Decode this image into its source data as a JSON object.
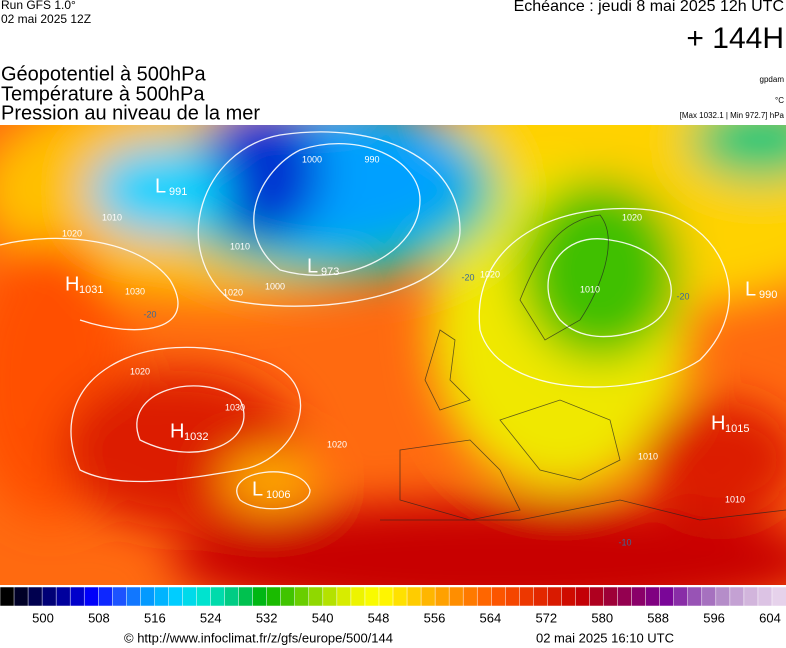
{
  "header": {
    "run": "Run GFS 1.0°",
    "run_date": "02 mai 2025 12Z",
    "valid": "Echéance : jeudi 8 mai 2025 12h UTC",
    "lead": "+ 144H",
    "titles": [
      "Géopotentiel à 500hPa",
      "Température à 500hPa",
      "Pression au niveau de la mer"
    ],
    "units": [
      "gpdam",
      "°C",
      "[Max 1032.1 | Min 972.7] hPa"
    ]
  },
  "map": {
    "centers": [
      {
        "letter": "H",
        "value": "1031"
      },
      {
        "letter": "L",
        "value": "973"
      },
      {
        "letter": "L",
        "value": "991"
      },
      {
        "letter": "L",
        "value": "990"
      },
      {
        "letter": "H",
        "value": "1032"
      },
      {
        "letter": "L",
        "value": "1006"
      },
      {
        "letter": "H",
        "value": "1015"
      }
    ],
    "isobar_labels": [
      "1000",
      "990",
      "1010",
      "1020",
      "1010",
      "1020",
      "1030",
      "1000",
      "1020",
      "1010",
      "1020",
      "1030",
      "1020",
      "1010",
      "1010",
      "1020"
    ],
    "temperature_labels": [
      "-20",
      "-20",
      "-20",
      "-10"
    ]
  },
  "colorbar": {
    "ticks": [
      500,
      508,
      516,
      524,
      532,
      540,
      548,
      556,
      564,
      572,
      580,
      588,
      596,
      604
    ],
    "colors": [
      "#000000",
      "#000050",
      "#0000a0",
      "#0000ff",
      "#1e5aff",
      "#00a0ff",
      "#00d2ff",
      "#00e6c8",
      "#00c878",
      "#00b400",
      "#50c800",
      "#a0dc00",
      "#e6f000",
      "#ffff00",
      "#ffd700",
      "#ffaa00",
      "#ff8200",
      "#ff5a00",
      "#f03c00",
      "#dc1e00",
      "#c80000",
      "#a00032",
      "#8c0064",
      "#780096",
      "#9650b4",
      "#b48cc8",
      "#d2b4dc",
      "#e6d2eb"
    ]
  },
  "footer": {
    "source": "© http://www.infoclimat.fr/z/gfs/europe/500/144",
    "generated": "02 mai 2025 16:10 UTC"
  }
}
